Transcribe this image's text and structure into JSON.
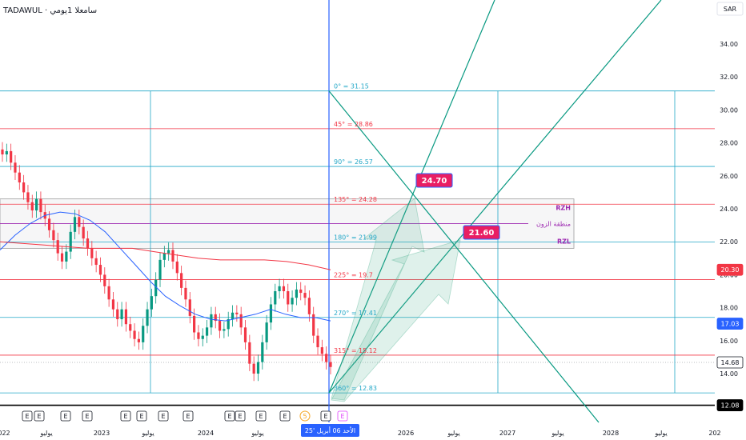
{
  "header": {
    "title": "TADAWUL · سامعلا 1يومي",
    "currency": "SAR"
  },
  "chart_data": {
    "type": "candlestick",
    "title": "",
    "y_axis": {
      "ticks": [
        14.0,
        16.0,
        18.0,
        20.0,
        22.0,
        24.0,
        26.0,
        28.0,
        30.0,
        32.0,
        34.0
      ],
      "range": [
        12.0,
        36.0
      ]
    },
    "x_axis": {
      "ticks": [
        "022",
        "يوليو",
        "2023",
        "يوليو",
        "2024",
        "يوليو",
        "25",
        "2026",
        "يوليو",
        "2027",
        "يوليو",
        "2028",
        "يوليو",
        "202"
      ]
    },
    "price_badges": [
      {
        "value": "20.30",
        "color": "#f23645"
      },
      {
        "value": "17.03",
        "color": "#2962ff"
      },
      {
        "value": "14.68",
        "color": "#ffffff"
      },
      {
        "value": "12.08",
        "color": "#000000"
      }
    ],
    "gann_levels": [
      {
        "angle": "0°",
        "label": "0° = 31.15",
        "value": 31.15,
        "color": "#22a7c7"
      },
      {
        "angle": "45°",
        "label": "45° = 28.86",
        "value": 28.86,
        "color": "#f23645"
      },
      {
        "angle": "90°",
        "label": "90° = 26.57",
        "value": 26.57,
        "color": "#22a7c7"
      },
      {
        "angle": "135°",
        "label": "135° = 24.28",
        "value": 24.28,
        "color": "#f23645"
      },
      {
        "angle": "180°",
        "label": "180° = 21.99",
        "value": 21.99,
        "color": "#22a7c7"
      },
      {
        "angle": "225°",
        "label": "225° = 19.7",
        "value": 19.7,
        "color": "#f23645"
      },
      {
        "angle": "270°",
        "label": "270° = 17.41",
        "value": 17.41,
        "color": "#22a7c7"
      },
      {
        "angle": "315°",
        "label": "315° = 15.12",
        "value": 15.12,
        "color": "#f23645"
      },
      {
        "angle": "360°",
        "label": "360° = 12.83",
        "value": 12.83,
        "color": "#22a7c7"
      }
    ],
    "zone": {
      "top_label": "RZH",
      "middle_label": "منطقة الزون",
      "bottom_label": "RZL",
      "top": 24.6,
      "bottom": 21.6
    },
    "targets": [
      {
        "value": "24.70",
        "color": "#e91e63"
      },
      {
        "value": "21.60",
        "color": "#e91e63"
      }
    ],
    "cursor_date": "الأحد 06 أبريل '25",
    "event_markers": [
      "E",
      "E",
      "E",
      "E",
      "E",
      "E",
      "E",
      "E",
      "E",
      "E",
      "E",
      "E",
      "5",
      "E",
      "E"
    ],
    "close": [
      27.3,
      27.5,
      26.8,
      26.2,
      25.6,
      25.0,
      24.4,
      23.9,
      24.6,
      23.8,
      23.4,
      22.7,
      22.1,
      21.3,
      20.8,
      21.4,
      22.6,
      23.5,
      22.9,
      22.2,
      21.6,
      21.0,
      20.6,
      20.0,
      19.3,
      18.5,
      17.9,
      17.3,
      17.9,
      17.0,
      16.6,
      16.1,
      15.9,
      16.9,
      17.9,
      18.7,
      19.7,
      20.9,
      21.3,
      21.5,
      20.8,
      20.1,
      19.2,
      18.5,
      17.5,
      16.5,
      16.1,
      16.3,
      16.8,
      17.6,
      17.2,
      16.6,
      16.7,
      17.3,
      17.7,
      17.6,
      16.8,
      15.9,
      14.6,
      14.0,
      14.7,
      15.9,
      17.1,
      18.2,
      19.0,
      19.3,
      19.0,
      18.2,
      18.6,
      19.1,
      18.9,
      18.6,
      17.6,
      16.3,
      15.6,
      15.2,
      14.7,
      14.4
    ],
    "ma_blue": [
      21.5,
      22.4,
      23.1,
      23.6,
      23.8,
      23.7,
      23.3,
      22.6,
      21.6,
      20.6,
      19.6,
      18.7,
      18.1,
      17.6,
      17.3,
      17.2,
      17.4,
      17.6,
      17.9,
      17.6,
      17.4,
      17.4,
      17.2
    ],
    "ma_red": [
      22.0,
      21.9,
      21.8,
      21.7,
      21.6,
      21.6,
      21.6,
      21.4,
      21.2,
      21.0,
      20.9,
      20.9,
      20.9,
      20.8,
      20.6,
      20.3
    ]
  }
}
